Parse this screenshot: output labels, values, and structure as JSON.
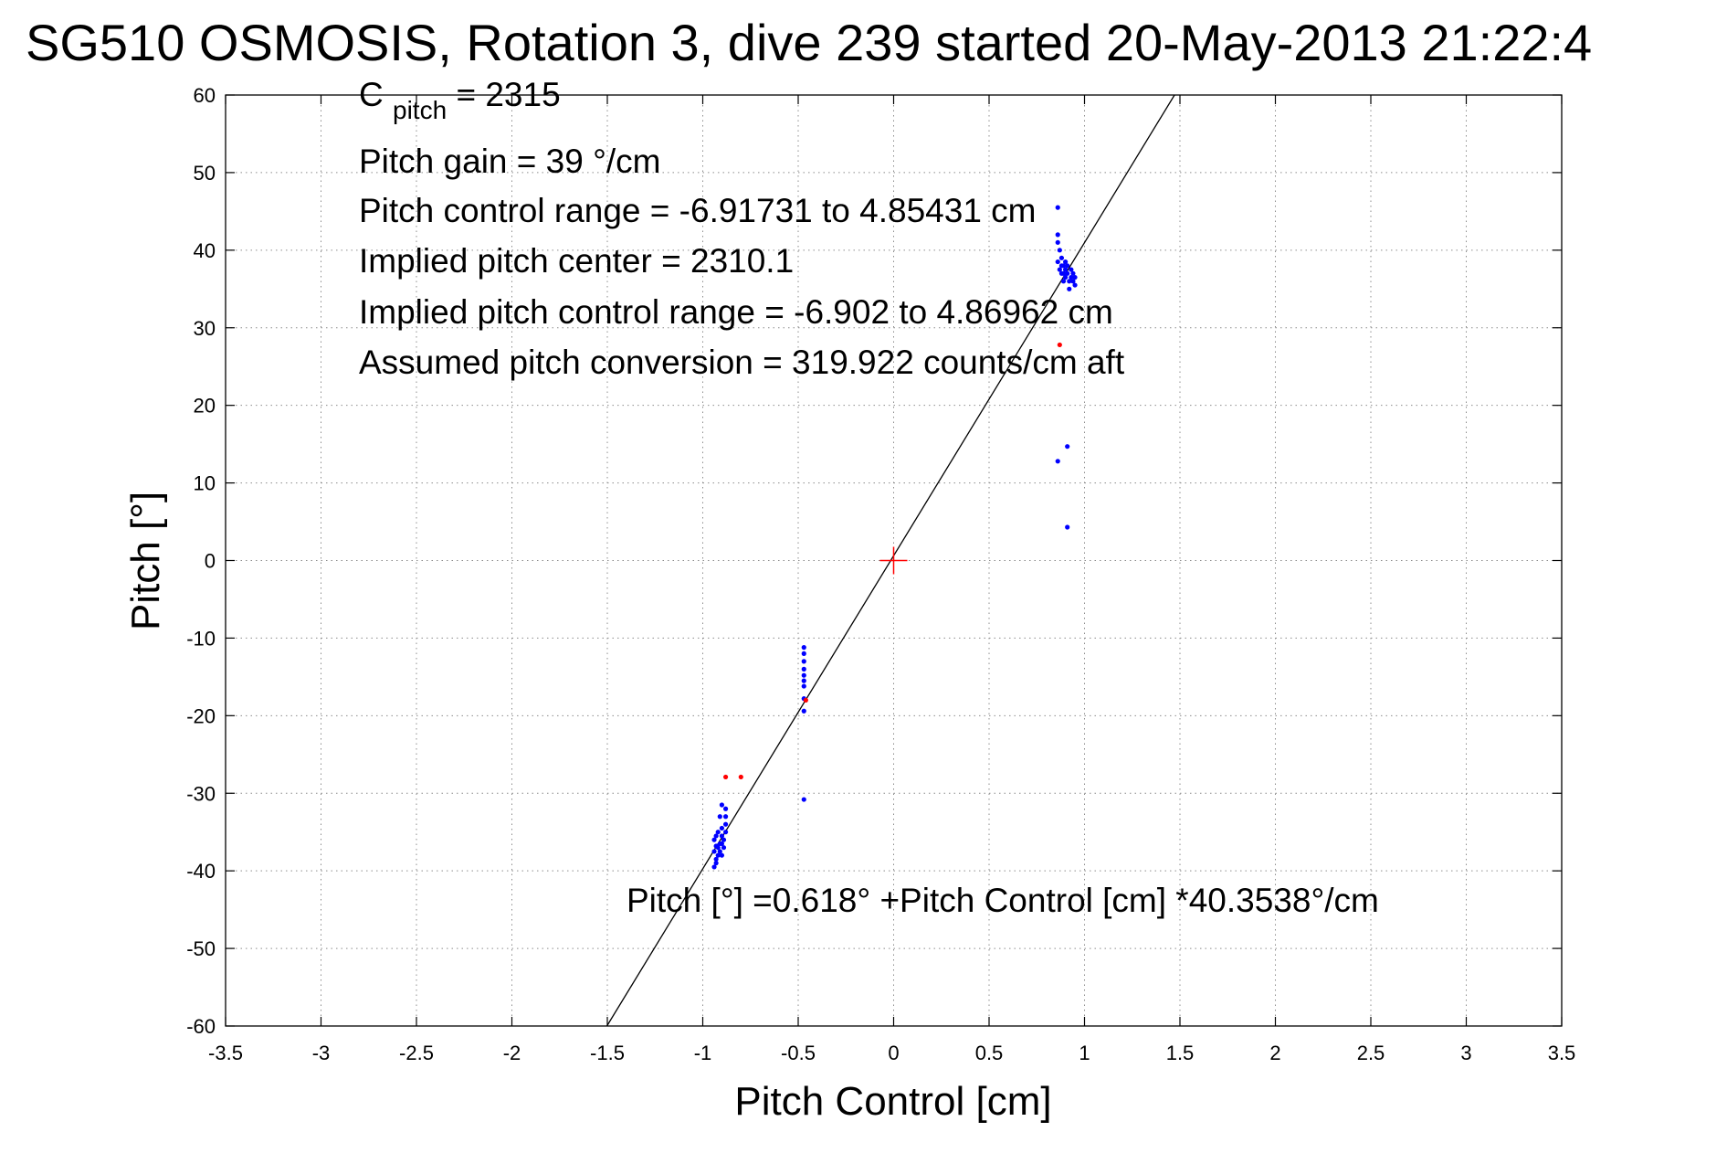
{
  "chart_data": {
    "type": "scatter",
    "title": "SG510 OSMOSIS, Rotation 3, dive 239 started 20-May-2013 21:22:4",
    "xlabel": "Pitch Control [cm]",
    "ylabel": "Pitch [°]",
    "xlim": [
      -3.5,
      3.5
    ],
    "ylim": [
      -60,
      60
    ],
    "grid": true,
    "xticks": [
      -3.5,
      -3,
      -2.5,
      -2,
      -1.5,
      -1,
      -0.5,
      0,
      0.5,
      1,
      1.5,
      2,
      2.5,
      3,
      3.5
    ],
    "xtick_labels": [
      "-3.5",
      "-3",
      "-2.5",
      "-2",
      "-1.5",
      "-1",
      "-0.5",
      "0",
      "0.5",
      "1",
      "1.5",
      "2",
      "2.5",
      "3",
      "3.5"
    ],
    "yticks": [
      60,
      50,
      40,
      30,
      20,
      10,
      0,
      -10,
      -20,
      -30,
      -40,
      -50,
      -60
    ],
    "ytick_labels": [
      "60",
      "50",
      "40",
      "30",
      "20",
      "10",
      "0",
      "-10",
      "-20",
      "-30",
      "-40",
      "-50",
      "-60"
    ],
    "fit_line": {
      "intercept": 0.618,
      "slope": 40.3538,
      "color": "#000000"
    },
    "center_marker": {
      "x": 0,
      "y": 0,
      "color": "#ff0000"
    },
    "series": [
      {
        "color": "#0000ff",
        "points": [
          [
            0.86,
            45.5
          ],
          [
            0.86,
            42.0
          ],
          [
            0.86,
            41.0
          ],
          [
            0.87,
            40.0
          ],
          [
            0.86,
            38.5
          ],
          [
            0.87,
            37.5
          ],
          [
            0.88,
            39.0
          ],
          [
            0.88,
            37.0
          ],
          [
            0.89,
            36.0
          ],
          [
            0.89,
            38.0
          ],
          [
            0.9,
            38.5
          ],
          [
            0.9,
            37.5
          ],
          [
            0.9,
            36.5
          ],
          [
            0.91,
            38.0
          ],
          [
            0.91,
            37.0
          ],
          [
            0.92,
            36.0
          ],
          [
            0.92,
            35.0
          ],
          [
            0.93,
            37.5
          ],
          [
            0.93,
            36.5
          ],
          [
            0.94,
            37.0
          ],
          [
            0.94,
            36.0
          ],
          [
            0.95,
            35.5
          ],
          [
            0.95,
            36.5
          ],
          [
            0.89,
            37.0
          ],
          [
            0.88,
            38.0
          ],
          [
            0.86,
            12.8
          ],
          [
            0.91,
            14.7
          ],
          [
            0.91,
            4.3
          ],
          [
            -0.47,
            -11.2
          ],
          [
            -0.47,
            -12.0
          ],
          [
            -0.47,
            -13.0
          ],
          [
            -0.47,
            -14.0
          ],
          [
            -0.47,
            -14.8
          ],
          [
            -0.47,
            -15.5
          ],
          [
            -0.47,
            -16.2
          ],
          [
            -0.47,
            -17.8
          ],
          [
            -0.47,
            -19.4
          ],
          [
            -0.47,
            -30.8
          ],
          [
            -0.9,
            -31.5
          ],
          [
            -0.88,
            -32.0
          ],
          [
            -0.88,
            -33.0
          ],
          [
            -0.88,
            -34.0
          ],
          [
            -0.88,
            -35.0
          ],
          [
            -0.89,
            -36.0
          ],
          [
            -0.9,
            -35.5
          ],
          [
            -0.9,
            -34.5
          ],
          [
            -0.91,
            -33.0
          ],
          [
            -0.91,
            -36.5
          ],
          [
            -0.92,
            -37.0
          ],
          [
            -0.92,
            -38.0
          ],
          [
            -0.93,
            -38.5
          ],
          [
            -0.93,
            -39.0
          ],
          [
            -0.94,
            -39.5
          ],
          [
            -0.94,
            -37.5
          ],
          [
            -0.94,
            -36.0
          ],
          [
            -0.93,
            -35.5
          ],
          [
            -0.91,
            -37.5
          ],
          [
            -0.9,
            -38.0
          ],
          [
            -0.89,
            -37.0
          ],
          [
            -0.92,
            -35.0
          ],
          [
            -0.9,
            -36.5
          ],
          [
            -0.93,
            -36.8
          ]
        ]
      },
      {
        "color": "#ff0000",
        "points": [
          [
            0.87,
            27.8
          ],
          [
            -0.88,
            -27.9
          ],
          [
            -0.8,
            -27.9
          ],
          [
            -0.46,
            -18.0
          ]
        ]
      }
    ],
    "annotations": {
      "cpitch_main": "C",
      "cpitch_sub": "pitch",
      "cpitch_value": " = 2315",
      "pitch_gain": "Pitch gain = 39 °/cm",
      "control_range": "Pitch control range = -6.91731 to 4.85431 cm",
      "implied_center": "Implied pitch center = 2310.1",
      "implied_range": "Implied pitch control range = -6.902 to 4.86962 cm",
      "conversion": "Assumed pitch conversion = 319.922 counts/cm aft",
      "fit_equation": "Pitch [°] =0.618° +Pitch Control [cm] *40.3538°/cm"
    }
  }
}
